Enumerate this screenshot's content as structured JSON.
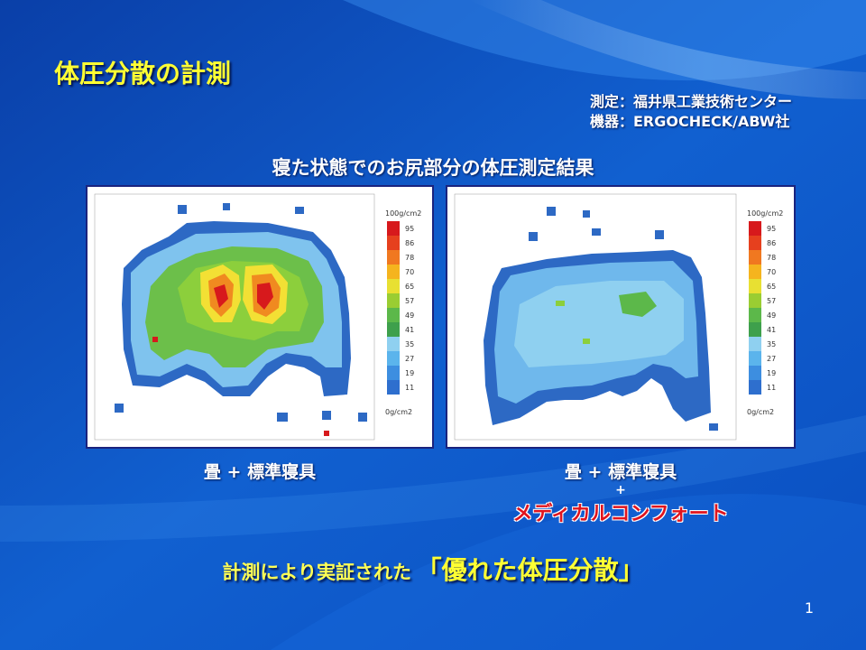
{
  "title": "体圧分散の計測",
  "credits": {
    "line1": "測定：福井県工業技術センター",
    "line2": "機器：ERGOCHECK/ABW社"
  },
  "subtitle": "寝た状態でのお尻部分の体圧測定結果",
  "scale": {
    "top_label": "100g/cm2",
    "bottom_label": "0g/cm2",
    "ticks": [
      "95",
      "86",
      "78",
      "70",
      "65",
      "57",
      "49",
      "41",
      "35",
      "27",
      "19",
      "11"
    ],
    "colors": [
      "#d7191c",
      "#e6401e",
      "#f07820",
      "#f5b41e",
      "#e8e032",
      "#9acd32",
      "#5cb84a",
      "#3ea04c",
      "#8fd0f0",
      "#5bb4ec",
      "#3d8ee0",
      "#2e6fce"
    ]
  },
  "left_panel": {
    "caption": "畳 + 標準寝具"
  },
  "right_panel": {
    "caption_line1": "畳 + 標準寝具",
    "caption_line2": "+",
    "caption_line3": "メディカルコンフォート"
  },
  "bottom": {
    "prefix": "計測により実証された",
    "emphasis": "「優れた体圧分散」"
  },
  "page_number": "1"
}
